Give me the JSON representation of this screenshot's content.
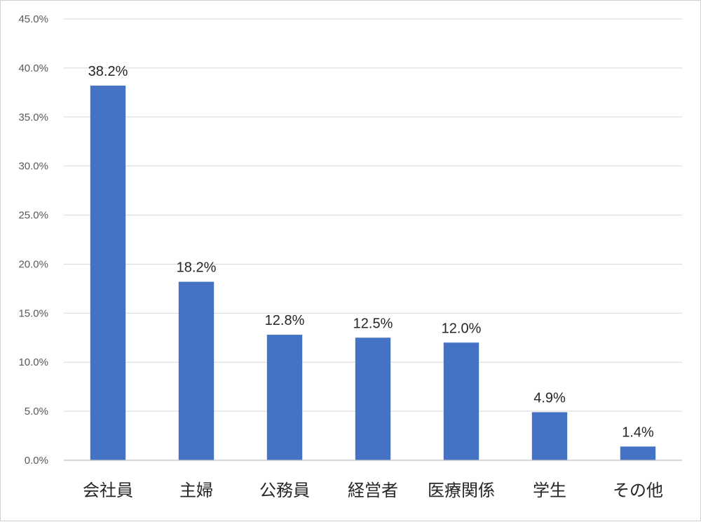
{
  "chart_data": {
    "type": "bar",
    "categories": [
      "会社員",
      "主婦",
      "公務員",
      "経営者",
      "医療関係",
      "学生",
      "その他"
    ],
    "values": [
      38.2,
      18.2,
      12.8,
      12.5,
      12.0,
      4.9,
      1.4
    ],
    "data_labels": [
      "38.2%",
      "18.2%",
      "12.8%",
      "12.5%",
      "12.0%",
      "4.9%",
      "1.4%"
    ],
    "title": "",
    "xlabel": "",
    "ylabel": "",
    "ylim": [
      0,
      45
    ],
    "yticks": [
      0,
      5,
      10,
      15,
      20,
      25,
      30,
      35,
      40,
      45
    ],
    "ytick_labels": [
      "0.0%",
      "5.0%",
      "10.0%",
      "15.0%",
      "20.0%",
      "25.0%",
      "30.0%",
      "35.0%",
      "40.0%",
      "45.0%"
    ],
    "grid": true,
    "legend": "none",
    "bar_color": "#4472C4"
  }
}
